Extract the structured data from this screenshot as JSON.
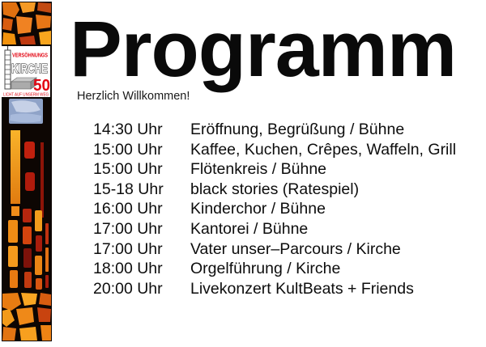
{
  "page": {
    "title": "Programm",
    "subtitle": "Herzlich Willkommen!"
  },
  "sidebar": {
    "artwork": "stained-glass-church-window",
    "logo": {
      "line1": "VERSÖHNUNGS",
      "line2": "KIRCHE",
      "anniversary": "50",
      "tagline": "LICHT AUF UNSERM WEG"
    }
  },
  "schedule": {
    "items": [
      {
        "time": "14:30 Uhr",
        "event": "Eröffnung, Begrüßung / Bühne"
      },
      {
        "time": "15:00 Uhr",
        "event": "Kaffee, Kuchen, Crêpes, Waffeln, Grill"
      },
      {
        "time": "15:00 Uhr",
        "event": "Flötenkreis / Bühne"
      },
      {
        "time": "15-18 Uhr",
        "event": "black stories (Ratespiel)"
      },
      {
        "time": "16:00 Uhr",
        "event": "Kinderchor / Bühne"
      },
      {
        "time": "17:00 Uhr",
        "event": "Kantorei / Bühne"
      },
      {
        "time": "17:00 Uhr",
        "event": "Vater unser–Parcours / Kirche"
      },
      {
        "time": "18:00 Uhr",
        "event": "Orgelführung / Kirche"
      },
      {
        "time": "20:00 Uhr",
        "event": "Livekonzert KultBeats + Friends"
      }
    ]
  },
  "colors": {
    "logo_red": "#e30613",
    "glass_orange": "#ef8918",
    "glass_yellow": "#f9a623",
    "glass_red": "#b5200d",
    "glass_blue": "#9fb0d8",
    "leading_black": "#0d0603",
    "text_black": "#0a0a0a"
  }
}
